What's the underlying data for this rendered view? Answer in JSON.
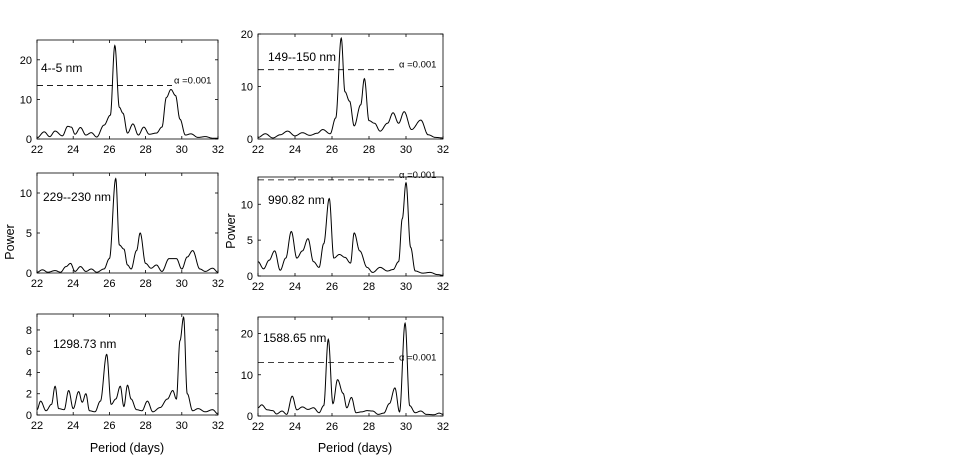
{
  "figure": {
    "ylabel": "Power",
    "xlabel": "Period (days)"
  },
  "chart_data": [
    {
      "type": "line",
      "panel_label": "4--5 nm",
      "xlim": [
        22,
        32
      ],
      "ylim": [
        0,
        25
      ],
      "xticks": [
        22,
        24,
        26,
        28,
        30,
        32
      ],
      "yticks": [
        0,
        10,
        20
      ],
      "threshold": {
        "value": 13.5,
        "label": "α =0.001"
      },
      "peaks": [
        [
          22.0,
          0.3
        ],
        [
          22.4,
          1.8
        ],
        [
          22.7,
          0.6
        ],
        [
          23.0,
          2.0
        ],
        [
          23.4,
          0.8
        ],
        [
          23.7,
          3.2
        ],
        [
          23.9,
          3.0
        ],
        [
          24.1,
          1.2
        ],
        [
          24.4,
          2.9
        ],
        [
          24.7,
          1.0
        ],
        [
          25.0,
          1.6
        ],
        [
          25.3,
          0.5
        ],
        [
          25.7,
          3.5
        ],
        [
          26.05,
          6.0
        ],
        [
          26.3,
          23.6
        ],
        [
          26.55,
          8.0
        ],
        [
          26.75,
          6.5
        ],
        [
          27.0,
          1.5
        ],
        [
          27.3,
          3.8
        ],
        [
          27.6,
          1.0
        ],
        [
          27.9,
          3.0
        ],
        [
          28.2,
          1.2
        ],
        [
          28.6,
          1.5
        ],
        [
          28.9,
          3.0
        ],
        [
          29.15,
          10.5
        ],
        [
          29.4,
          12.5
        ],
        [
          29.65,
          11.0
        ],
        [
          29.9,
          5.0
        ],
        [
          30.2,
          1.0
        ],
        [
          30.5,
          1.3
        ],
        [
          30.9,
          0.4
        ],
        [
          31.3,
          0.6
        ],
        [
          31.7,
          0.2
        ],
        [
          32.0,
          0.2
        ]
      ]
    },
    {
      "type": "line",
      "panel_label": "149--150 nm",
      "xlim": [
        22,
        32
      ],
      "ylim": [
        0,
        20
      ],
      "xticks": [
        22,
        24,
        26,
        28,
        30,
        32
      ],
      "yticks": [
        0,
        10,
        20
      ],
      "threshold": {
        "value": 13.2,
        "label": "α =0.001"
      },
      "peaks": [
        [
          22.0,
          0.3
        ],
        [
          22.4,
          1.0
        ],
        [
          22.8,
          0.2
        ],
        [
          23.2,
          0.8
        ],
        [
          23.6,
          1.5
        ],
        [
          24.0,
          0.6
        ],
        [
          24.4,
          1.2
        ],
        [
          24.8,
          0.7
        ],
        [
          25.2,
          1.1
        ],
        [
          25.5,
          1.8
        ],
        [
          25.9,
          1.0
        ],
        [
          26.2,
          4.0
        ],
        [
          26.5,
          19.2
        ],
        [
          26.7,
          9.0
        ],
        [
          26.95,
          7.2
        ],
        [
          27.2,
          2.5
        ],
        [
          27.55,
          6.5
        ],
        [
          27.75,
          11.5
        ],
        [
          28.0,
          3.5
        ],
        [
          28.3,
          3.0
        ],
        [
          28.6,
          1.5
        ],
        [
          29.0,
          3.0
        ],
        [
          29.3,
          5.0
        ],
        [
          29.6,
          3.0
        ],
        [
          29.9,
          5.2
        ],
        [
          30.3,
          1.8
        ],
        [
          30.8,
          3.6
        ],
        [
          31.2,
          0.8
        ],
        [
          31.6,
          0.3
        ],
        [
          32.0,
          0.2
        ]
      ]
    },
    {
      "type": "line",
      "panel_label": "229--230 nm",
      "xlim": [
        22,
        32
      ],
      "ylim": [
        0,
        12.5
      ],
      "xticks": [
        22,
        24,
        26,
        28,
        30,
        32
      ],
      "yticks": [
        0,
        5,
        10
      ],
      "threshold": null,
      "peaks": [
        [
          22.0,
          0.1
        ],
        [
          22.3,
          0.4
        ],
        [
          22.6,
          0.1
        ],
        [
          23.0,
          0.3
        ],
        [
          23.3,
          0.1
        ],
        [
          23.6,
          0.8
        ],
        [
          23.85,
          1.2
        ],
        [
          24.1,
          0.2
        ],
        [
          24.4,
          0.8
        ],
        [
          24.7,
          0.2
        ],
        [
          25.0,
          0.5
        ],
        [
          25.3,
          0.1
        ],
        [
          25.7,
          0.5
        ],
        [
          26.0,
          1.8
        ],
        [
          26.35,
          11.8
        ],
        [
          26.55,
          3.5
        ],
        [
          26.8,
          3.0
        ],
        [
          27.0,
          1.0
        ],
        [
          27.2,
          0.5
        ],
        [
          27.5,
          2.8
        ],
        [
          27.7,
          5.0
        ],
        [
          28.0,
          1.2
        ],
        [
          28.3,
          0.6
        ],
        [
          28.6,
          1.0
        ],
        [
          28.9,
          0.2
        ],
        [
          29.3,
          1.8
        ],
        [
          29.7,
          1.8
        ],
        [
          30.0,
          0.5
        ],
        [
          30.3,
          2.0
        ],
        [
          30.6,
          2.8
        ],
        [
          31.0,
          0.5
        ],
        [
          31.3,
          0.2
        ],
        [
          31.7,
          0.6
        ],
        [
          32.0,
          0.1
        ]
      ]
    },
    {
      "type": "line",
      "panel_label": "990.82 nm",
      "xlim": [
        22,
        32
      ],
      "ylim": [
        0,
        13.8
      ],
      "xticks": [
        22,
        24,
        26,
        28,
        30,
        32
      ],
      "yticks": [
        0,
        5,
        10
      ],
      "threshold": {
        "value": 13.4,
        "label": "α =0.001"
      },
      "peaks": [
        [
          22.0,
          2.0
        ],
        [
          22.3,
          1.0
        ],
        [
          22.6,
          2.2
        ],
        [
          22.9,
          3.5
        ],
        [
          23.2,
          0.8
        ],
        [
          23.5,
          2.5
        ],
        [
          23.8,
          6.2
        ],
        [
          24.1,
          2.5
        ],
        [
          24.4,
          3.5
        ],
        [
          24.7,
          5.2
        ],
        [
          25.0,
          2.0
        ],
        [
          25.3,
          1.2
        ],
        [
          25.55,
          4.5
        ],
        [
          25.85,
          10.8
        ],
        [
          26.1,
          2.5
        ],
        [
          26.4,
          3.0
        ],
        [
          26.7,
          2.6
        ],
        [
          27.0,
          1.8
        ],
        [
          27.2,
          6.0
        ],
        [
          27.5,
          3.5
        ],
        [
          27.9,
          1.2
        ],
        [
          28.2,
          0.5
        ],
        [
          28.6,
          1.2
        ],
        [
          29.0,
          0.7
        ],
        [
          29.3,
          0.9
        ],
        [
          29.6,
          2.0
        ],
        [
          29.8,
          8.0
        ],
        [
          30.0,
          13.0
        ],
        [
          30.25,
          4.0
        ],
        [
          30.5,
          0.7
        ],
        [
          30.9,
          0.4
        ],
        [
          31.3,
          0.5
        ],
        [
          31.7,
          0.2
        ],
        [
          32.0,
          0.1
        ]
      ]
    },
    {
      "type": "line",
      "panel_label": "1298.73 nm",
      "xlim": [
        22,
        32
      ],
      "ylim": [
        0,
        9.5
      ],
      "xticks": [
        22,
        24,
        26,
        28,
        30,
        32
      ],
      "yticks": [
        0,
        2,
        4,
        6,
        8
      ],
      "threshold": null,
      "peaks": [
        [
          22.0,
          0.5
        ],
        [
          22.2,
          1.3
        ],
        [
          22.5,
          0.4
        ],
        [
          22.8,
          1.0
        ],
        [
          23.0,
          2.7
        ],
        [
          23.2,
          0.6
        ],
        [
          23.5,
          0.5
        ],
        [
          23.75,
          2.3
        ],
        [
          24.0,
          0.6
        ],
        [
          24.3,
          2.2
        ],
        [
          24.5,
          1.2
        ],
        [
          24.7,
          2.0
        ],
        [
          24.9,
          0.4
        ],
        [
          25.2,
          0.3
        ],
        [
          25.5,
          1.3
        ],
        [
          25.85,
          5.7
        ],
        [
          26.1,
          1.0
        ],
        [
          26.35,
          1.5
        ],
        [
          26.6,
          2.7
        ],
        [
          26.8,
          0.8
        ],
        [
          27.0,
          2.8
        ],
        [
          27.2,
          1.5
        ],
        [
          27.5,
          0.5
        ],
        [
          27.8,
          0.4
        ],
        [
          28.1,
          1.3
        ],
        [
          28.4,
          0.3
        ],
        [
          28.8,
          0.7
        ],
        [
          29.2,
          1.5
        ],
        [
          29.5,
          2.3
        ],
        [
          29.7,
          1.5
        ],
        [
          29.9,
          7.0
        ],
        [
          30.1,
          9.2
        ],
        [
          30.3,
          2.0
        ],
        [
          30.6,
          0.4
        ],
        [
          30.9,
          0.6
        ],
        [
          31.3,
          0.3
        ],
        [
          31.7,
          0.5
        ],
        [
          32.0,
          0.1
        ]
      ]
    },
    {
      "type": "line",
      "panel_label": "1588.65 nm",
      "xlim": [
        22,
        32
      ],
      "ylim": [
        0,
        24
      ],
      "xticks": [
        22,
        24,
        26,
        28,
        30,
        32
      ],
      "yticks": [
        0,
        10,
        20
      ],
      "threshold": {
        "value": 13.0,
        "label": "α =0.001"
      },
      "peaks": [
        [
          22.0,
          2.0
        ],
        [
          22.2,
          2.7
        ],
        [
          22.5,
          1.5
        ],
        [
          22.8,
          1.3
        ],
        [
          23.0,
          0.5
        ],
        [
          23.3,
          1.2
        ],
        [
          23.55,
          0.4
        ],
        [
          23.85,
          4.8
        ],
        [
          24.1,
          1.5
        ],
        [
          24.4,
          2.2
        ],
        [
          24.7,
          1.6
        ],
        [
          25.0,
          2.0
        ],
        [
          25.3,
          0.8
        ],
        [
          25.55,
          2.5
        ],
        [
          25.8,
          18.6
        ],
        [
          26.05,
          3.0
        ],
        [
          26.3,
          8.8
        ],
        [
          26.6,
          5.5
        ],
        [
          26.8,
          2.0
        ],
        [
          27.05,
          4.5
        ],
        [
          27.3,
          0.8
        ],
        [
          27.6,
          1.0
        ],
        [
          27.9,
          1.3
        ],
        [
          28.2,
          1.2
        ],
        [
          28.5,
          0.4
        ],
        [
          28.8,
          0.7
        ],
        [
          29.1,
          3.0
        ],
        [
          29.4,
          6.8
        ],
        [
          29.65,
          1.0
        ],
        [
          29.95,
          22.5
        ],
        [
          30.2,
          2.5
        ],
        [
          30.5,
          0.8
        ],
        [
          30.8,
          1.2
        ],
        [
          31.1,
          0.4
        ],
        [
          31.5,
          0.3
        ],
        [
          31.8,
          0.7
        ],
        [
          32.0,
          0.4
        ]
      ]
    }
  ]
}
